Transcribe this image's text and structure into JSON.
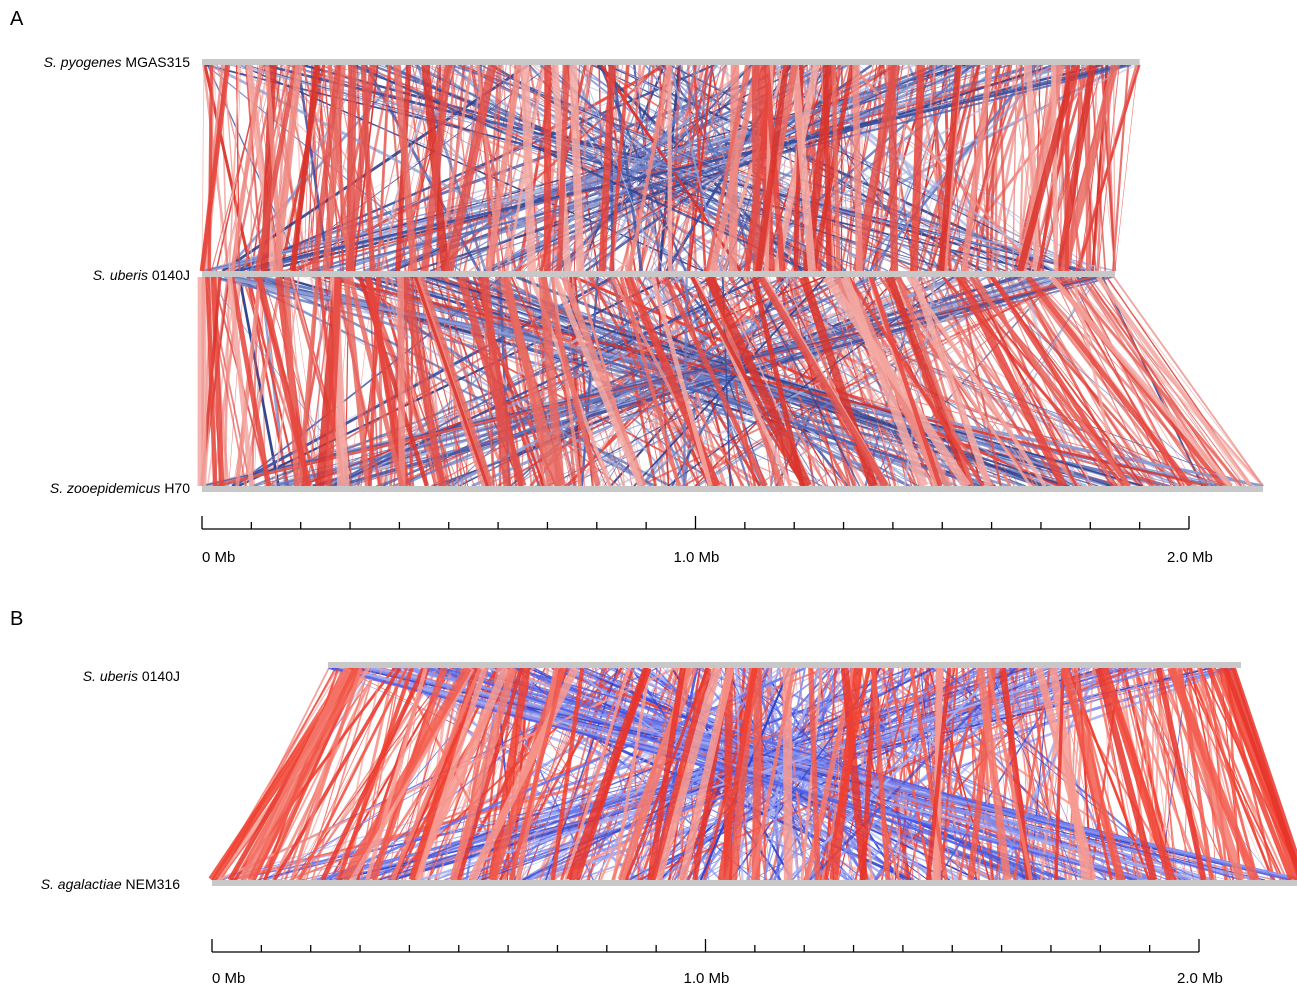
{
  "panel_a": {
    "letter": "A",
    "genomes": [
      {
        "species": "S. pyogenes",
        "strain": "MGAS315",
        "length_mb": 1.9
      },
      {
        "species": "S. uberis",
        "strain": "0140J",
        "length_mb": 1.85
      },
      {
        "species": "S. zooepidemicus",
        "strain": "H70",
        "length_mb": 2.15
      }
    ],
    "axis": {
      "ticks": [
        "0 Mb",
        "1.0 Mb",
        "2.0 Mb"
      ],
      "max_mb": 2.0,
      "minor_step_mb": 0.1
    }
  },
  "panel_b": {
    "letter": "B",
    "genomes": [
      {
        "species": "S. uberis",
        "strain": "0140J",
        "start_mb": 0.235,
        "length_mb": 1.85
      },
      {
        "species": "S. agalactiae",
        "strain": "NEM316",
        "length_mb": 2.21
      }
    ],
    "axis": {
      "ticks": [
        "0 Mb",
        "1.0 Mb",
        "2.0 Mb"
      ],
      "max_mb": 2.0,
      "minor_step_mb": 0.1
    }
  },
  "colors": {
    "forward_match": "#d9342b",
    "reverse_match": "#3a4fa0",
    "genome_bar": "#c8c8c8"
  }
}
